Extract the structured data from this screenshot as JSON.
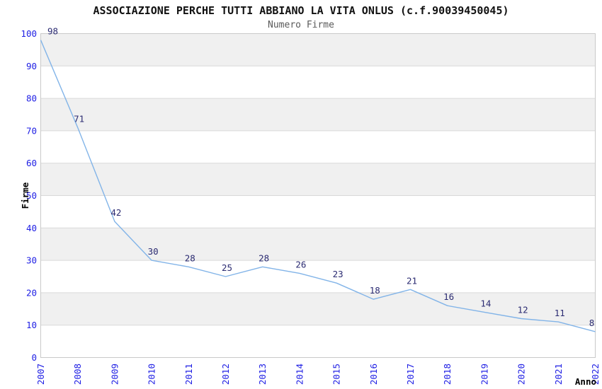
{
  "page": {
    "background": "#ffffff"
  },
  "chart_data": {
    "type": "line",
    "title": "ASSOCIAZIONE PERCHE TUTTI ABBIANO LA VITA ONLUS (c.f.90039450045)",
    "subtitle": "Numero Firme",
    "xlabel": "Anno",
    "ylabel": "Firme",
    "categories": [
      "2007",
      "2008",
      "2009",
      "2010",
      "2011",
      "2012",
      "2013",
      "2014",
      "2015",
      "2016",
      "2017",
      "2018",
      "2019",
      "2020",
      "2021",
      "2022"
    ],
    "series": [
      {
        "name": "Numero Firme",
        "values": [
          98,
          71,
          42,
          30,
          28,
          25,
          28,
          26,
          23,
          18,
          21,
          16,
          14,
          12,
          11,
          8
        ]
      }
    ],
    "point_labels": [
      "98",
      "71",
      "42",
      "30",
      "28",
      "25",
      "28",
      "26",
      "23",
      "18",
      "21",
      "16",
      "14",
      "12",
      "11",
      "8"
    ],
    "ylim": [
      0,
      100
    ],
    "yticks": [
      0,
      10,
      20,
      30,
      40,
      50,
      60,
      70,
      80,
      90,
      100
    ],
    "grid": "horizontal",
    "banding": "alternating gray bands between gridlines, gray at top (90-100)",
    "legend": "none",
    "markers": "none",
    "x_tick_rotation_deg": 90,
    "colors": {
      "line": "#82b4e8",
      "tick_label": "#1e1ee4",
      "data_label": "#2b2b72",
      "band": "#f0f0f0",
      "gridline": "#d9d9d9",
      "border": "#c9c9c9",
      "title": "#111111",
      "subtitle": "#5a5a5a",
      "axis_title": "#000000",
      "background": "#ffffff"
    }
  }
}
